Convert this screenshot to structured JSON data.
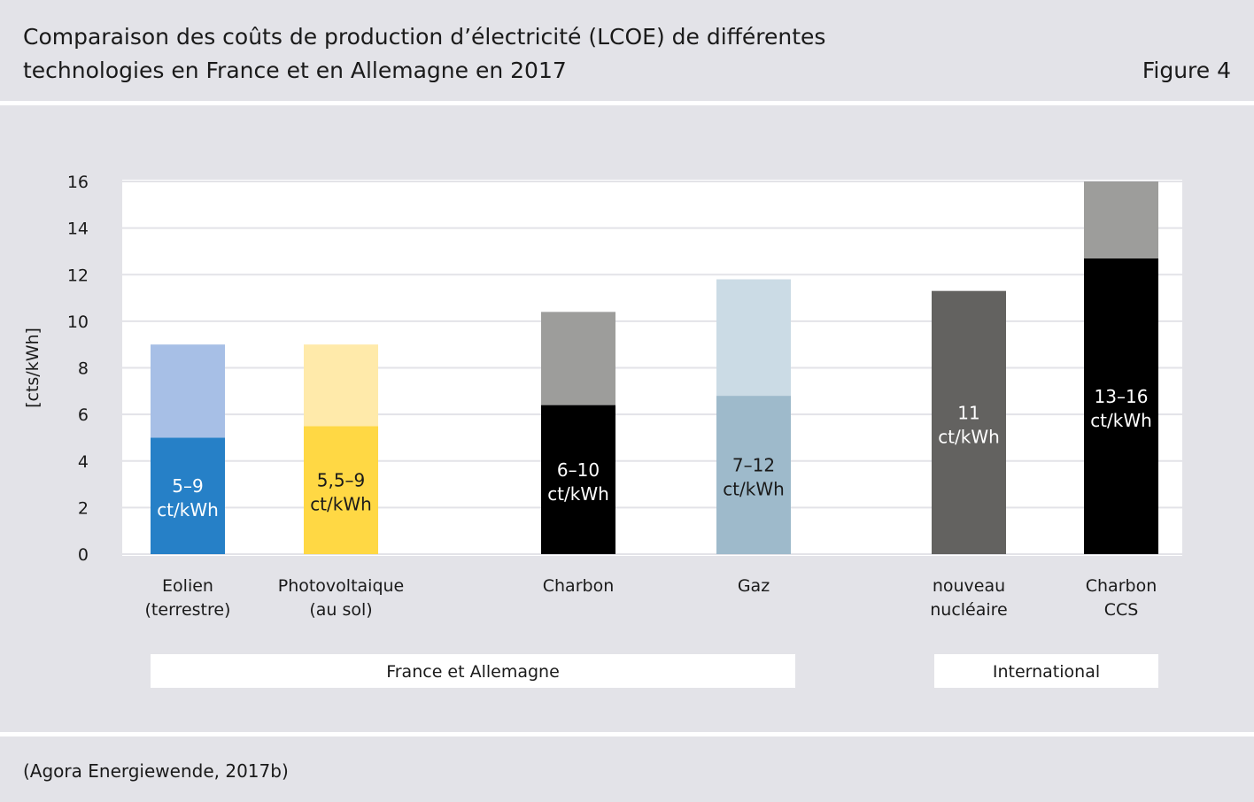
{
  "header": {
    "title_line1": "Comparaison des coûts de production d’électricité (LCOE) de différentes",
    "title_line2": "technologies en France et en Allemagne en 2017",
    "figure_label": "Figure 4"
  },
  "footer": {
    "source": "(Agora Energiewende, 2017b)"
  },
  "chart_data": {
    "type": "bar",
    "subtype": "stacked-range",
    "ylabel": "[cts/kWh]",
    "ylim": [
      0,
      16
    ],
    "yticks": [
      0,
      2,
      4,
      6,
      8,
      10,
      12,
      14,
      16
    ],
    "grid": true,
    "categories": [
      {
        "label_lines": [
          "Eolien",
          "(terrestre)"
        ],
        "low": 5,
        "high": 9,
        "value_label": [
          "5–9",
          "ct/kWh"
        ],
        "color_base": "#2680c7",
        "color_range": "#a7bfe6",
        "label_color": "#ffffff"
      },
      {
        "label_lines": [
          "Photovoltaique",
          "(au sol)"
        ],
        "low": 5.5,
        "high": 9,
        "value_label": [
          "5,5–9",
          "ct/kWh"
        ],
        "color_base": "#ffd844",
        "color_range": "#ffeaaa",
        "label_color": "#1a1a1a"
      },
      {
        "label_lines": [
          "Charbon"
        ],
        "low": 6.4,
        "high": 10.4,
        "value_label": [
          "6–10",
          "ct/kWh"
        ],
        "color_base": "#000000",
        "color_range": "#9d9d9b",
        "label_color": "#ffffff"
      },
      {
        "label_lines": [
          "Gaz"
        ],
        "low": 6.8,
        "high": 11.8,
        "value_label": [
          "7–12",
          "ct/kWh"
        ],
        "color_base": "#9ebacb",
        "color_range": "#cbdbe5",
        "label_color": "#1a1a1a"
      },
      {
        "label_lines": [
          "nouveau",
          "nucléaire"
        ],
        "low": 11.3,
        "high": 11.3,
        "value_label": [
          "11",
          "ct/kWh"
        ],
        "color_base": "#636260",
        "color_range": "#636260",
        "label_color": "#ffffff"
      },
      {
        "label_lines": [
          "Charbon",
          "CCS"
        ],
        "low": 12.7,
        "high": 16,
        "value_label": [
          "13–16",
          "ct/kWh"
        ],
        "color_base": "#000000",
        "color_range": "#9d9d9b",
        "label_color": "#ffffff"
      }
    ],
    "groups": [
      {
        "label": "France et Allemagne",
        "categories": [
          0,
          1,
          2,
          3
        ]
      },
      {
        "label": "International",
        "categories": [
          4,
          5
        ]
      }
    ]
  }
}
